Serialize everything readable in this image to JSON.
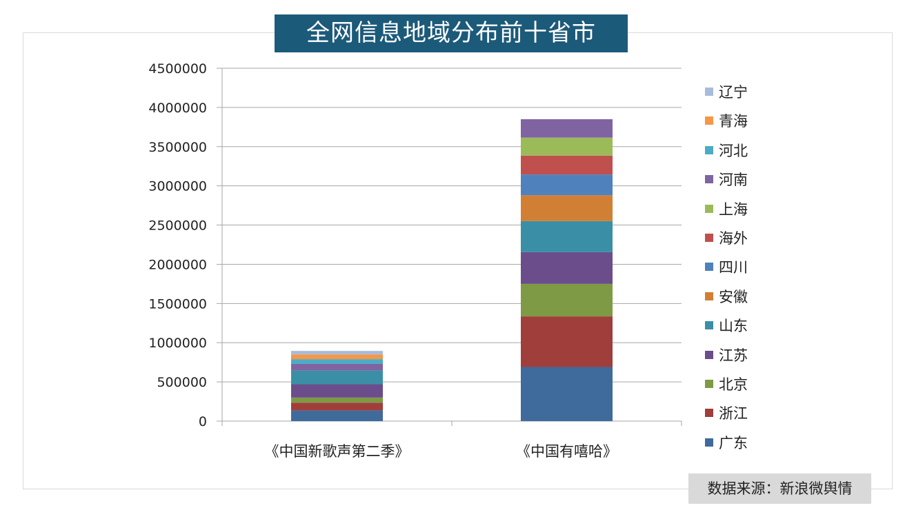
{
  "title": "全网信息地域分布前十省市",
  "source": "数据来源：新浪微舆情",
  "chart_data": {
    "type": "bar",
    "stacked": true,
    "categories": [
      "《中国新歌声第二季》",
      "《中国有嘻哈》"
    ],
    "y_ticks": [
      "0",
      "500000",
      "1000000",
      "1500000",
      "2000000",
      "2500000",
      "3000000",
      "3500000",
      "4000000",
      "4500000"
    ],
    "ylim": [
      0,
      4500000
    ],
    "grid": true,
    "legend_position": "right",
    "series": [
      {
        "name": "广东",
        "color": "#3F6A9C",
        "values": [
          135000,
          690000
        ]
      },
      {
        "name": "浙江",
        "color": "#A03E3B",
        "values": [
          100000,
          645000
        ]
      },
      {
        "name": "北京",
        "color": "#7E9A45",
        "values": [
          65000,
          415000
        ]
      },
      {
        "name": "江苏",
        "color": "#6A4D8A",
        "values": [
          170000,
          405000
        ]
      },
      {
        "name": "山东",
        "color": "#3A8FA6",
        "values": [
          175000,
          395000
        ]
      },
      {
        "name": "安徽",
        "color": "#D17F35",
        "values": [
          0,
          330000
        ]
      },
      {
        "name": "四川",
        "color": "#4F81BD",
        "values": [
          0,
          265000
        ]
      },
      {
        "name": "海外",
        "color": "#C0504D",
        "values": [
          0,
          240000
        ]
      },
      {
        "name": "上海",
        "color": "#9BBB59",
        "values": [
          0,
          230000
        ]
      },
      {
        "name": "河南",
        "color": "#8064A2",
        "values": [
          85000,
          235000
        ]
      },
      {
        "name": "河北",
        "color": "#4BACC6",
        "values": [
          60000,
          0
        ]
      },
      {
        "name": "青海",
        "color": "#F79646",
        "values": [
          60000,
          0
        ]
      },
      {
        "name": "辽宁",
        "color": "#A9BBDA",
        "values": [
          45000,
          0
        ]
      }
    ]
  }
}
